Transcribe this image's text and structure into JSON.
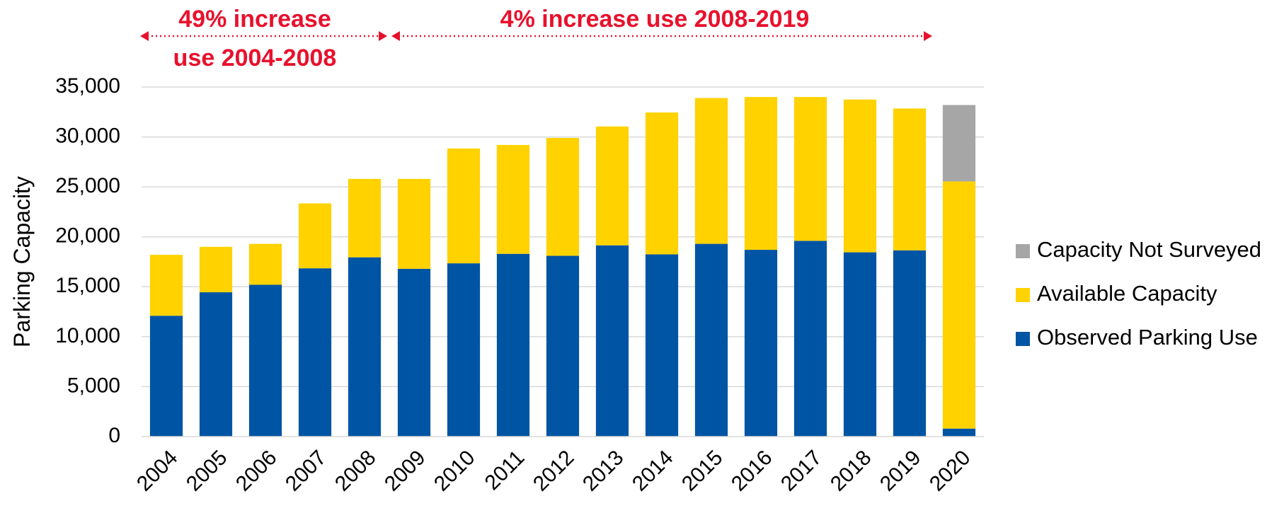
{
  "chart_data": {
    "type": "bar",
    "stacked": true,
    "categories": [
      "2004",
      "2005",
      "2006",
      "2007",
      "2008",
      "2009",
      "2010",
      "2011",
      "2012",
      "2013",
      "2014",
      "2015",
      "2016",
      "2017",
      "2018",
      "2019",
      "2020"
    ],
    "series": [
      {
        "name": "Observed Parking Use",
        "color": "#0054a4",
        "values": [
          12100,
          14450,
          15200,
          16850,
          17950,
          16800,
          17350,
          18300,
          18100,
          19150,
          18250,
          19300,
          18700,
          19600,
          18450,
          18650,
          800
        ]
      },
      {
        "name": "Available Capacity",
        "color": "#ffd200",
        "values": [
          6100,
          4550,
          4100,
          6500,
          7850,
          9000,
          11500,
          10900,
          11800,
          11900,
          14200,
          14600,
          15300,
          14400,
          15300,
          14200,
          24750
        ]
      },
      {
        "name": "Capacity Not Surveyed",
        "color": "#a6a6a6",
        "values": [
          0,
          0,
          0,
          0,
          0,
          0,
          0,
          0,
          0,
          0,
          0,
          0,
          0,
          0,
          0,
          0,
          7650
        ]
      }
    ],
    "ylabel": "Parking Capacity",
    "xlabel": "",
    "ylim": [
      0,
      35000
    ],
    "yticks": [
      0,
      5000,
      10000,
      15000,
      20000,
      25000,
      30000,
      35000
    ],
    "ytick_labels": [
      "0",
      "5,000",
      "10,000",
      "15,000",
      "20,000",
      "25,000",
      "30,000",
      "35,000"
    ],
    "grid": true,
    "legend_position": "right",
    "legend_order": [
      "Capacity Not Surveyed",
      "Available Capacity",
      "Observed Parking Use"
    ],
    "annotations": [
      {
        "lines": [
          "49% increase",
          "use 2004-2008"
        ],
        "span": [
          "2004",
          "2008"
        ],
        "color": "#e8112d"
      },
      {
        "lines": [
          "4% increase use 2008-2019"
        ],
        "span": [
          "2008",
          "2019"
        ],
        "color": "#e8112d"
      }
    ]
  }
}
